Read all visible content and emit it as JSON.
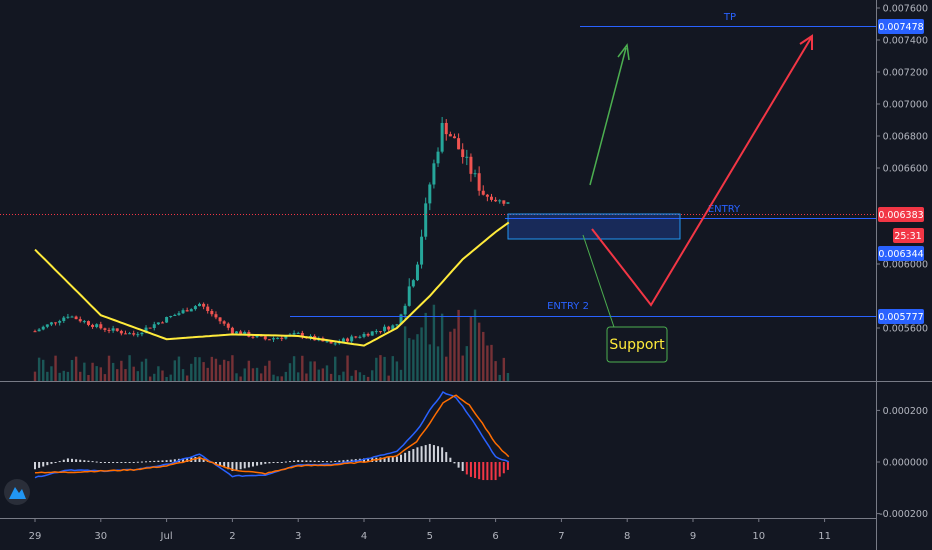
{
  "chart_data": [
    {
      "type": "candlestick",
      "title": "",
      "x_ticks": [
        "29",
        "30",
        "Jul",
        "2",
        "3",
        "4",
        "5",
        "6",
        "7",
        "8",
        "9",
        "10",
        "11"
      ],
      "y_ticks": [
        "0.007600",
        "0.007400",
        "0.007200",
        "0.007000",
        "0.006800",
        "0.006600",
        "0.006000",
        "0.005600"
      ],
      "ylim": [
        0.0054,
        0.00766
      ],
      "grid": false,
      "price_badges": [
        {
          "value": "0.007478",
          "color": "#2962ff"
        },
        {
          "value": "0.006383",
          "color": "#f23645"
        },
        {
          "value": "25:31",
          "color": "#f23645"
        },
        {
          "value": "0.006344",
          "color": "#2962ff"
        },
        {
          "value": "0.005777",
          "color": "#2962ff"
        }
      ],
      "levels": [
        {
          "label": "TP",
          "price": 0.007478,
          "color": "#2962ff"
        },
        {
          "label": "ENTRY",
          "price": 0.006344,
          "color": "#2962ff"
        },
        {
          "label": "ENTRY 2",
          "price": 0.005777,
          "color": "#2962ff"
        }
      ],
      "current_price": 0.006383,
      "annotation": "Support",
      "series": [
        {
          "name": "",
          "type": "moving-average",
          "color": "#ffeb3b",
          "x": [
            0,
            1,
            2,
            3,
            4,
            5,
            5.5,
            6,
            6.5,
            7,
            7.2
          ],
          "y": [
            0.00609,
            0.00568,
            0.00553,
            0.00556,
            0.00555,
            0.00549,
            0.0056,
            0.0058,
            0.00603,
            0.0062,
            0.00626
          ]
        }
      ],
      "price_path": {
        "x": [
          0,
          0.5,
          1,
          1.5,
          2,
          2.5,
          3,
          3.5,
          4,
          4.5,
          5,
          5.5,
          5.8,
          6,
          6.2,
          6.4,
          6.6,
          6.8,
          7,
          7.2
        ],
        "y": [
          0.00558,
          0.00568,
          0.0056,
          0.00556,
          0.00566,
          0.00575,
          0.00558,
          0.00553,
          0.00556,
          0.0055,
          0.00556,
          0.00562,
          0.006,
          0.0065,
          0.00688,
          0.00675,
          0.0066,
          0.00645,
          0.0064,
          0.00638
        ]
      }
    },
    {
      "type": "macd",
      "y_ticks": [
        "0.000200",
        "0.000000",
        "-0.000200"
      ],
      "ylim": [
        -0.00024,
        0.00034
      ],
      "series": [
        {
          "name": "",
          "color": "#2962ff",
          "x": [
            0,
            0.5,
            1,
            1.5,
            2,
            2.5,
            3,
            3.5,
            4,
            4.5,
            5,
            5.5,
            5.8,
            6,
            6.2,
            6.4,
            6.6,
            6.8,
            7,
            7.2
          ],
          "y": [
            -6e-05,
            -3e-05,
            -3.5e-05,
            -3e-05,
            -1e-05,
            3e-05,
            -5.5e-05,
            -5e-05,
            -1e-05,
            -1e-05,
            1e-05,
            4e-05,
            0.00012,
            0.0002,
            0.00027,
            0.00025,
            0.00018,
            0.0001,
            2e-05,
            0.0
          ]
        },
        {
          "name": "",
          "color": "#ff6d00",
          "x": [
            0,
            0.5,
            1,
            1.5,
            2,
            2.5,
            3,
            3.5,
            4,
            4.5,
            5,
            5.5,
            5.8,
            6,
            6.2,
            6.4,
            6.6,
            6.8,
            7,
            7.2
          ],
          "y": [
            -4e-05,
            -4e-05,
            -3.5e-05,
            -3e-05,
            -1.5e-05,
            1.5e-05,
            -3e-05,
            -4.5e-05,
            -1.5e-05,
            -1.2e-05,
            0.0,
            2.5e-05,
            8e-05,
            0.00015,
            0.00023,
            0.00026,
            0.00022,
            0.00015,
            7e-05,
            2e-05
          ]
        }
      ]
    }
  ],
  "colors": {
    "background": "#131722",
    "up": "#26a69a",
    "down": "#ef5350",
    "text": "#b2b5be"
  },
  "icons": {
    "logo": "tradingview-logo-icon"
  }
}
